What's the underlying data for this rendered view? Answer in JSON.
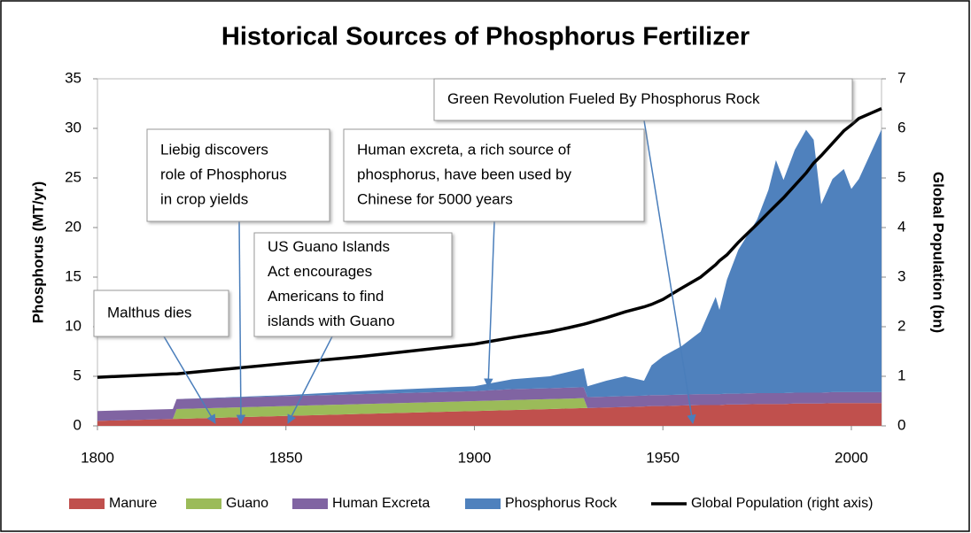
{
  "chart_data": {
    "type": "area",
    "title": "Historical Sources of Phosphorus Fertilizer",
    "y_label": "Phosphorus (MT/yr)",
    "y2_label": "Global Population (bn)",
    "x": [
      1800,
      1820,
      1821,
      1850,
      1870,
      1900,
      1910,
      1920,
      1925,
      1929,
      1930,
      1935,
      1940,
      1945,
      1947,
      1950,
      1955,
      1960,
      1964,
      1965,
      1967,
      1970,
      1975,
      1978,
      1980,
      1982,
      1985,
      1988,
      1990,
      1992,
      1995,
      1998,
      2000,
      2002,
      2005,
      2008
    ],
    "xlim": [
      1800,
      2008
    ],
    "xticks": [
      1800,
      1850,
      1900,
      1950,
      2000
    ],
    "ylim": [
      0,
      35
    ],
    "yticks": [
      0,
      5,
      10,
      15,
      20,
      25,
      30,
      35
    ],
    "y2lim": [
      0,
      7
    ],
    "y2ticks": [
      0,
      1,
      2,
      3,
      4,
      5,
      6,
      7
    ],
    "stacked": true,
    "series": [
      {
        "name": "Manure",
        "color": "#c0504d",
        "values": [
          0.5,
          0.7,
          0.7,
          1.0,
          1.2,
          1.5,
          1.6,
          1.7,
          1.75,
          1.8,
          1.8,
          1.85,
          1.9,
          1.95,
          2.0,
          2.0,
          2.05,
          2.1,
          2.1,
          2.1,
          2.15,
          2.15,
          2.2,
          2.2,
          2.2,
          2.2,
          2.25,
          2.25,
          2.25,
          2.25,
          2.3,
          2.3,
          2.3,
          2.3,
          2.3,
          2.3
        ]
      },
      {
        "name": "Guano",
        "color": "#9bbb59",
        "values": [
          0,
          0,
          1,
          1,
          1,
          1,
          1,
          1,
          1,
          1,
          0,
          0,
          0,
          0,
          0,
          0,
          0,
          0,
          0,
          0,
          0,
          0,
          0,
          0,
          0,
          0,
          0,
          0,
          0,
          0,
          0,
          0,
          0,
          0,
          0,
          0
        ]
      },
      {
        "name": "Human Excreta",
        "color": "#8064a2",
        "values": [
          1,
          1,
          1,
          1,
          1,
          1,
          1.1,
          1.1,
          1.1,
          1.1,
          1.1,
          1.1,
          1.1,
          1.1,
          1.1,
          1.1,
          1.1,
          1.1,
          1.1,
          1.1,
          1.1,
          1.1,
          1.1,
          1.1,
          1.1,
          1.1,
          1.1,
          1.1,
          1.1,
          1.1,
          1.1,
          1.1,
          1.1,
          1.1,
          1.1,
          1.1
        ]
      },
      {
        "name": "Phosphorus Rock",
        "color": "#4f81bd",
        "values": [
          0,
          0,
          0,
          0.1,
          0.3,
          0.5,
          1.0,
          1.2,
          1.6,
          1.9,
          1.1,
          1.6,
          2.0,
          1.5,
          3.0,
          3.9,
          4.9,
          6.3,
          9.8,
          8.5,
          11.5,
          14.5,
          17.5,
          20.5,
          23.5,
          21.5,
          24.5,
          26.5,
          25.5,
          19,
          21.5,
          22.5,
          20.5,
          21.5,
          24,
          26.5
        ]
      },
      {
        "name": "Global Population (right axis)",
        "color": "#000000",
        "type": "line",
        "axis": "y2",
        "values": [
          0.98,
          1.05,
          1.05,
          1.26,
          1.4,
          1.65,
          1.78,
          1.9,
          1.98,
          2.05,
          2.07,
          2.18,
          2.3,
          2.4,
          2.45,
          2.55,
          2.78,
          3.0,
          3.25,
          3.33,
          3.45,
          3.7,
          4.07,
          4.3,
          4.45,
          4.6,
          4.85,
          5.1,
          5.3,
          5.45,
          5.7,
          5.95,
          6.07,
          6.2,
          6.3,
          6.4
        ]
      }
    ],
    "annotations": [
      [
        "Malthus dies"
      ],
      [
        "Liebig discovers",
        "role of Phosphorus",
        "in crop yields"
      ],
      [
        "US Guano Islands",
        "Act  encourages",
        "Americans to find",
        "islands with Guano"
      ],
      [
        "Human excreta, a rich source of",
        "phosphorus, have been used by",
        "Chinese for 5000 years"
      ],
      [
        "Green Revolution Fueled By Phosphorus Rock"
      ]
    ],
    "legend": "bottom"
  }
}
